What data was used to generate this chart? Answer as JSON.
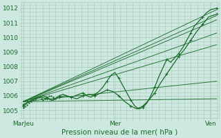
{
  "bg_color": "#cce8e0",
  "grid_color": "#aaccbb",
  "line_color": "#1a6b2a",
  "title": "Pression niveau de la mer( hPa )",
  "xtick_labels": [
    "MarJeu",
    "Mer",
    "Ven"
  ],
  "xtick_positions": [
    0.0,
    0.46,
    0.94
  ],
  "ylim": [
    1004.5,
    1012.4
  ],
  "yticks": [
    1005,
    1006,
    1007,
    1008,
    1009,
    1010,
    1011,
    1012
  ],
  "fan_lines": [
    {
      "x": [
        0.0,
        0.97
      ],
      "y": [
        1005.6,
        1011.9
      ]
    },
    {
      "x": [
        0.0,
        0.97
      ],
      "y": [
        1005.6,
        1011.5
      ]
    },
    {
      "x": [
        0.0,
        0.97
      ],
      "y": [
        1005.6,
        1011.2
      ]
    },
    {
      "x": [
        0.0,
        0.97
      ],
      "y": [
        1005.6,
        1010.3
      ]
    },
    {
      "x": [
        0.0,
        0.97
      ],
      "y": [
        1005.6,
        1009.5
      ]
    },
    {
      "x": [
        0.0,
        0.97
      ],
      "y": [
        1005.6,
        1007.0
      ]
    },
    {
      "x": [
        0.0,
        0.97
      ],
      "y": [
        1005.6,
        1005.8
      ]
    }
  ],
  "line1_x": [
    0.0,
    0.02,
    0.04,
    0.06,
    0.08,
    0.1,
    0.12,
    0.14,
    0.16,
    0.18,
    0.2,
    0.22,
    0.24,
    0.26,
    0.28,
    0.3,
    0.32,
    0.34,
    0.36,
    0.38,
    0.4,
    0.42,
    0.44,
    0.46,
    0.48,
    0.5,
    0.52,
    0.54,
    0.56,
    0.58,
    0.6,
    0.62,
    0.64,
    0.66,
    0.68,
    0.7,
    0.72,
    0.74,
    0.76,
    0.78,
    0.8,
    0.82,
    0.84,
    0.86,
    0.88,
    0.9,
    0.92,
    0.94,
    0.97
  ],
  "line1_y": [
    1005.3,
    1005.5,
    1005.7,
    1005.8,
    1005.9,
    1006.0,
    1005.9,
    1005.7,
    1005.8,
    1006.0,
    1006.1,
    1006.0,
    1005.9,
    1006.0,
    1006.1,
    1006.2,
    1006.0,
    1005.9,
    1006.1,
    1006.3,
    1006.6,
    1007.0,
    1007.4,
    1007.6,
    1007.2,
    1006.7,
    1006.2,
    1005.7,
    1005.3,
    1005.1,
    1005.2,
    1005.5,
    1006.0,
    1006.6,
    1007.3,
    1007.9,
    1008.5,
    1008.3,
    1008.6,
    1008.9,
    1009.3,
    1009.8,
    1010.3,
    1010.8,
    1011.1,
    1011.4,
    1011.7,
    1011.9,
    1012.0
  ],
  "line2_x": [
    0.0,
    0.03,
    0.06,
    0.09,
    0.12,
    0.15,
    0.18,
    0.21,
    0.24,
    0.27,
    0.3,
    0.33,
    0.36,
    0.39,
    0.42,
    0.45,
    0.48,
    0.51,
    0.54,
    0.57,
    0.6,
    0.63,
    0.66,
    0.69,
    0.72,
    0.75,
    0.78,
    0.81,
    0.84,
    0.87,
    0.9,
    0.93,
    0.97
  ],
  "line2_y": [
    1005.4,
    1005.6,
    1005.8,
    1005.9,
    1005.8,
    1005.7,
    1005.9,
    1006.0,
    1005.9,
    1005.8,
    1006.0,
    1006.1,
    1006.0,
    1006.2,
    1006.4,
    1006.3,
    1006.0,
    1005.6,
    1005.3,
    1005.1,
    1005.3,
    1005.7,
    1006.2,
    1006.9,
    1007.5,
    1008.1,
    1008.7,
    1009.2,
    1009.8,
    1010.4,
    1010.9,
    1011.4,
    1011.6
  ],
  "cluster_x": [
    0.0,
    0.01,
    0.02,
    0.03,
    0.04,
    0.05,
    0.06,
    0.07,
    0.08,
    0.09,
    0.1,
    0.11,
    0.12,
    0.13,
    0.14,
    0.15,
    0.16
  ],
  "cluster_y": [
    1005.2,
    1005.3,
    1005.4,
    1005.5,
    1005.6,
    1005.7,
    1005.8,
    1005.9,
    1005.9,
    1005.8,
    1005.7,
    1005.8,
    1005.9,
    1006.0,
    1006.0,
    1005.9,
    1005.8
  ]
}
